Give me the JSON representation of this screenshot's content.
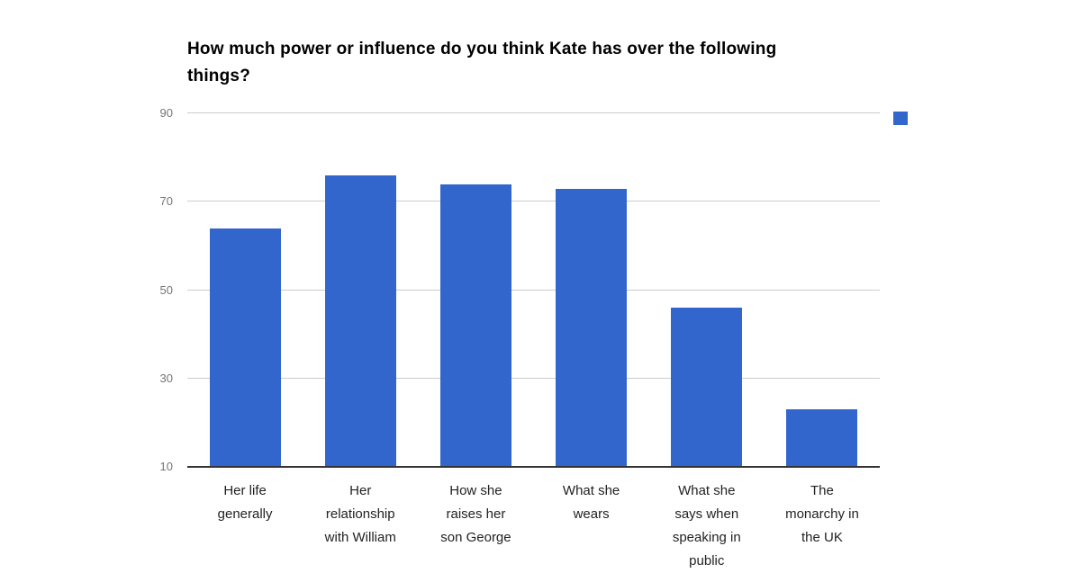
{
  "chart_data": {
    "type": "bar",
    "title": "How much power or influence do you think Kate has over the following things?",
    "categories": [
      "Her life generally",
      "Her relationship with William",
      "How she raises her son George",
      "What she wears",
      "What she says when speaking in public",
      "The monarchy in the UK"
    ],
    "categories_wrapped": [
      "Her life\ngenerally",
      "Her\nrelationship\nwith William",
      "How she\nraises her\nson George",
      "What she\nwears",
      "What she\nsays when\nspeaking in\npublic",
      "The\nmonarchy in\nthe UK"
    ],
    "values": [
      64,
      76,
      74,
      73,
      46,
      23
    ],
    "xlabel": "",
    "ylabel": "",
    "ylim": [
      10,
      90
    ],
    "yticks": [
      10,
      30,
      50,
      70,
      90
    ],
    "grid": true,
    "legend_position": "top-right",
    "legend_label": "",
    "colors": {
      "bar": "#3366cc",
      "gridline": "#cccccc",
      "baseline": "#333333",
      "ytick_text": "#757575",
      "xtick_text": "#222222",
      "title_text": "#000000",
      "background": "#ffffff"
    }
  }
}
